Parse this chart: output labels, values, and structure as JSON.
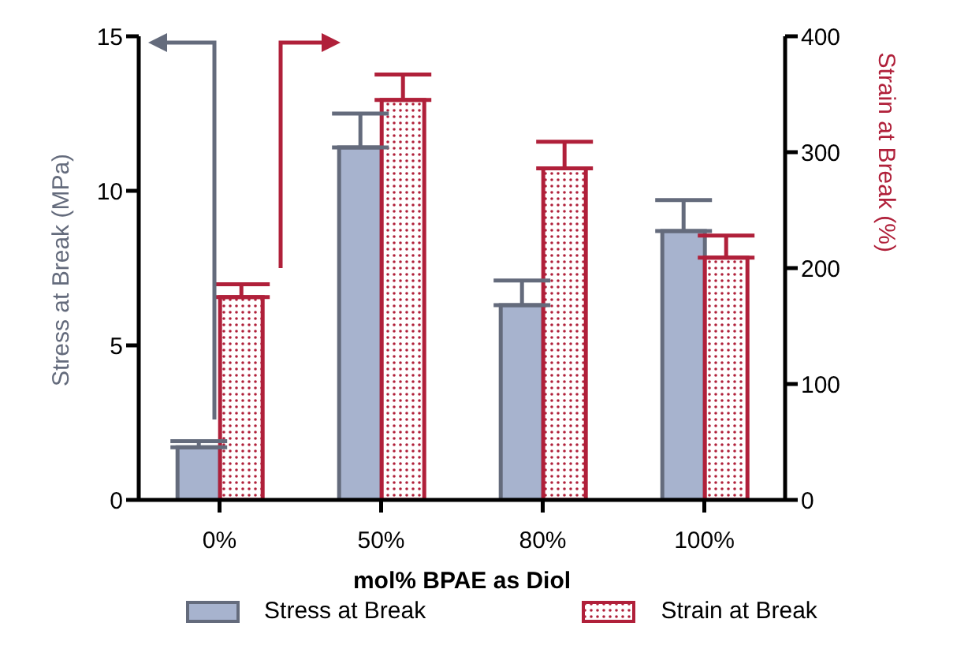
{
  "chart_data": {
    "type": "bar",
    "xlabel": "mol% BPAE as Diol",
    "ylabel": "Stress at Break (MPa)",
    "y2label": "Strain at Break (%)",
    "categories": [
      "0%",
      "50%",
      "80%",
      "100%"
    ],
    "series": [
      {
        "name": "Stress at Break",
        "color": "#a7b3ce",
        "values": [
          1.7,
          11.4,
          6.3,
          8.7
        ],
        "errors": [
          [
            1.7,
            1.9
          ],
          [
            11.4,
            12.5
          ],
          [
            6.3,
            7.1
          ],
          [
            8.7,
            9.7
          ]
        ]
      },
      {
        "name": "Strain at Break",
        "color": "#b0203a",
        "axis": "y2",
        "values": [
          175,
          345,
          286,
          209
        ],
        "errors": [
          [
            175,
            186
          ],
          [
            345,
            367
          ],
          [
            286,
            309
          ],
          [
            209,
            228
          ]
        ]
      }
    ],
    "ylim": [
      0,
      15
    ],
    "yticks": [
      0,
      5,
      10,
      15
    ],
    "y2lim": [
      0,
      400
    ],
    "y2ticks": [
      0,
      100,
      200,
      300,
      400
    ],
    "legend": "bottom"
  }
}
